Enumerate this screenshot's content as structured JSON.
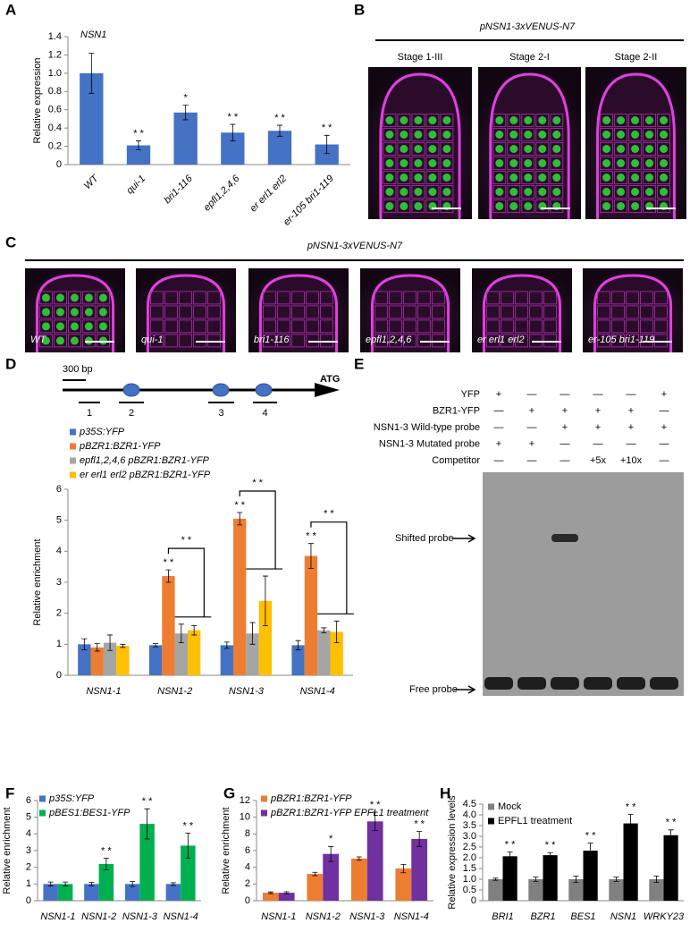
{
  "chart_data": [
    {
      "type": "bar",
      "panel": "A",
      "title": "NSN1",
      "y_label": "Relative expression",
      "categories": [
        "WT",
        "qui-1",
        "bri1-116",
        "epfl1,2,4,6",
        "er erl1 erl2",
        "er-105 bri1-119"
      ],
      "values": [
        1.0,
        0.21,
        0.57,
        0.35,
        0.37,
        0.22
      ],
      "errors": [
        0.22,
        0.05,
        0.08,
        0.09,
        0.06,
        0.1
      ],
      "annotations": [
        null,
        "* *",
        "*",
        "* *",
        "* *",
        "* *"
      ],
      "color": "#4472c4",
      "ylim": [
        0,
        1.4
      ],
      "yticks": [
        0,
        0.2,
        0.4,
        0.6,
        0.8,
        {
          "value": 1,
          "label": "1.0"
        },
        1.2,
        1.4
      ]
    },
    {
      "type": "bar",
      "panel": "D",
      "y_label": "Relative enrichment",
      "categories": [
        "NSN1-1",
        "NSN1-2",
        "NSN1-3",
        "NSN1-4"
      ],
      "series": [
        {
          "name": "p35S:YFP",
          "color": "#4472c4",
          "values": [
            1.0,
            0.97,
            0.97,
            0.97
          ],
          "errors": [
            0.18,
            0.05,
            0.1,
            0.15
          ]
        },
        {
          "name": "pBZR1:BZR1-YFP",
          "color": "#ed7d31",
          "values": [
            0.9,
            3.2,
            5.05,
            3.85
          ],
          "errors": [
            0.12,
            0.2,
            0.2,
            0.4
          ],
          "annotations": [
            null,
            "* *",
            "* *",
            "* *"
          ]
        },
        {
          "name": "epfl1,2,4,6 pBZR1:BZR1-YFP",
          "color": "#a5a5a5",
          "values": [
            1.05,
            1.35,
            1.35,
            1.45
          ],
          "errors": [
            0.25,
            0.3,
            0.35,
            0.08
          ]
        },
        {
          "name": "er erl1 erl2 pBZR1:BZR1-YFP",
          "color": "#ffc000",
          "values": [
            0.95,
            1.45,
            2.4,
            1.4
          ],
          "errors": [
            0.05,
            0.15,
            0.8,
            0.35
          ]
        }
      ],
      "bracket_labels": [
        null,
        "* *",
        "* *",
        "* *"
      ],
      "ylim": [
        0,
        6
      ],
      "yticks": [
        0,
        1,
        2,
        3,
        4,
        5,
        6
      ]
    },
    {
      "type": "bar",
      "panel": "F",
      "y_label": "Relative enrichment",
      "categories": [
        "NSN1-1",
        "NSN1-2",
        "NSN1-3",
        "NSN1-4"
      ],
      "series": [
        {
          "name": "p35S:YFP",
          "color": "#4472c4",
          "values": [
            1.0,
            1.0,
            1.0,
            1.0
          ],
          "errors": [
            0.12,
            0.1,
            0.15,
            0.08
          ]
        },
        {
          "name": "pBES1:BES1-YFP",
          "color": "#00b050",
          "values": [
            1.0,
            2.2,
            4.6,
            3.3
          ],
          "errors": [
            0.12,
            0.35,
            0.9,
            0.75
          ],
          "annotations": [
            null,
            "* *",
            "* *",
            "* *"
          ]
        }
      ],
      "ylim": [
        0,
        6
      ],
      "yticks": [
        0,
        1,
        2,
        3,
        4,
        5,
        6
      ]
    },
    {
      "type": "bar",
      "panel": "G",
      "y_label": "Relative enrichment",
      "categories": [
        "NSN1-1",
        "NSN1-2",
        "NSN1-3",
        "NSN1-4"
      ],
      "series": [
        {
          "name": "pBZR1:BZR1-YFP",
          "color": "#ed7d31",
          "values": [
            0.95,
            3.2,
            5.05,
            3.85
          ],
          "errors": [
            0.1,
            0.2,
            0.2,
            0.5
          ]
        },
        {
          "name": "pBZR1:BZR1-YFP EPFL1 treatment",
          "color": "#7030a0",
          "values": [
            0.95,
            5.6,
            9.5,
            7.4
          ],
          "errors": [
            0.12,
            0.9,
            1.1,
            0.9
          ],
          "annotations": [
            null,
            "*",
            "* *",
            "* *"
          ]
        }
      ],
      "ylim": [
        0,
        12
      ],
      "yticks": [
        0,
        2,
        4,
        6,
        8,
        10,
        12
      ]
    },
    {
      "type": "bar",
      "panel": "H",
      "y_label": "Relative expression levels",
      "categories": [
        "BRI1",
        "BZR1",
        "BES1",
        "NSN1",
        "WRKY23"
      ],
      "series": [
        {
          "name": "Mock",
          "color": "#808080",
          "values": [
            1.0,
            1.0,
            1.0,
            1.0,
            1.0
          ],
          "errors": [
            0.05,
            0.1,
            0.15,
            0.1,
            0.15
          ]
        },
        {
          "name": "EPFL1 treatment",
          "color": "#000000",
          "values": [
            2.07,
            2.12,
            2.33,
            3.6,
            3.05
          ],
          "errors": [
            0.2,
            0.12,
            0.35,
            0.42,
            0.25
          ],
          "annotations": [
            "* *",
            "* *",
            "* *",
            "* *",
            "* *"
          ]
        }
      ],
      "ylim": [
        0,
        4.5
      ],
      "yticks": [
        0,
        0.5,
        {
          "value": 1,
          "label": "1.0"
        },
        1.5,
        {
          "value": 2,
          "label": "2.0"
        },
        2.5,
        {
          "value": 3,
          "label": "3.0"
        },
        3.5,
        {
          "value": 4,
          "label": "4.0"
        },
        4.5
      ]
    }
  ],
  "microscopy_b": {
    "panel": "B",
    "title": "pNSN1-3xVENUS-N7",
    "images": [
      "Stage 1-III",
      "Stage 2-I",
      "Stage 2-II"
    ]
  },
  "microscopy_c": {
    "panel": "C",
    "title": "pNSN1-3xVENUS-N7",
    "images": [
      "WT",
      "qui-1",
      "bri1-116",
      "epfl1,2,4,6",
      "er erl1 erl2",
      "er-105 bri1-119"
    ]
  },
  "gene_map": {
    "scale_label": "300 bp",
    "regions": [
      "1",
      "2",
      "3",
      "4"
    ],
    "start_label": "ATG"
  },
  "emsa": {
    "panel": "E",
    "rows": [
      {
        "label": "YFP",
        "cells": [
          "+",
          "—",
          "—",
          "—",
          "—",
          "+"
        ]
      },
      {
        "label": "BZR1-YFP",
        "cells": [
          "—",
          "+",
          "+",
          "+",
          "+",
          "—"
        ]
      },
      {
        "label": "NSN1-3 Wild-type probe",
        "cells": [
          "—",
          "—",
          "+",
          "+",
          "+",
          "+"
        ]
      },
      {
        "label": "NSN1-3 Mutated probe",
        "cells": [
          "+",
          "+",
          "—",
          "—",
          "—",
          "—"
        ]
      },
      {
        "label": "Competitor",
        "cells": [
          "—",
          "—",
          "—",
          "+5x",
          "+10x",
          "—"
        ]
      }
    ],
    "band_labels": [
      "Shifted probe",
      "Free probe"
    ]
  }
}
